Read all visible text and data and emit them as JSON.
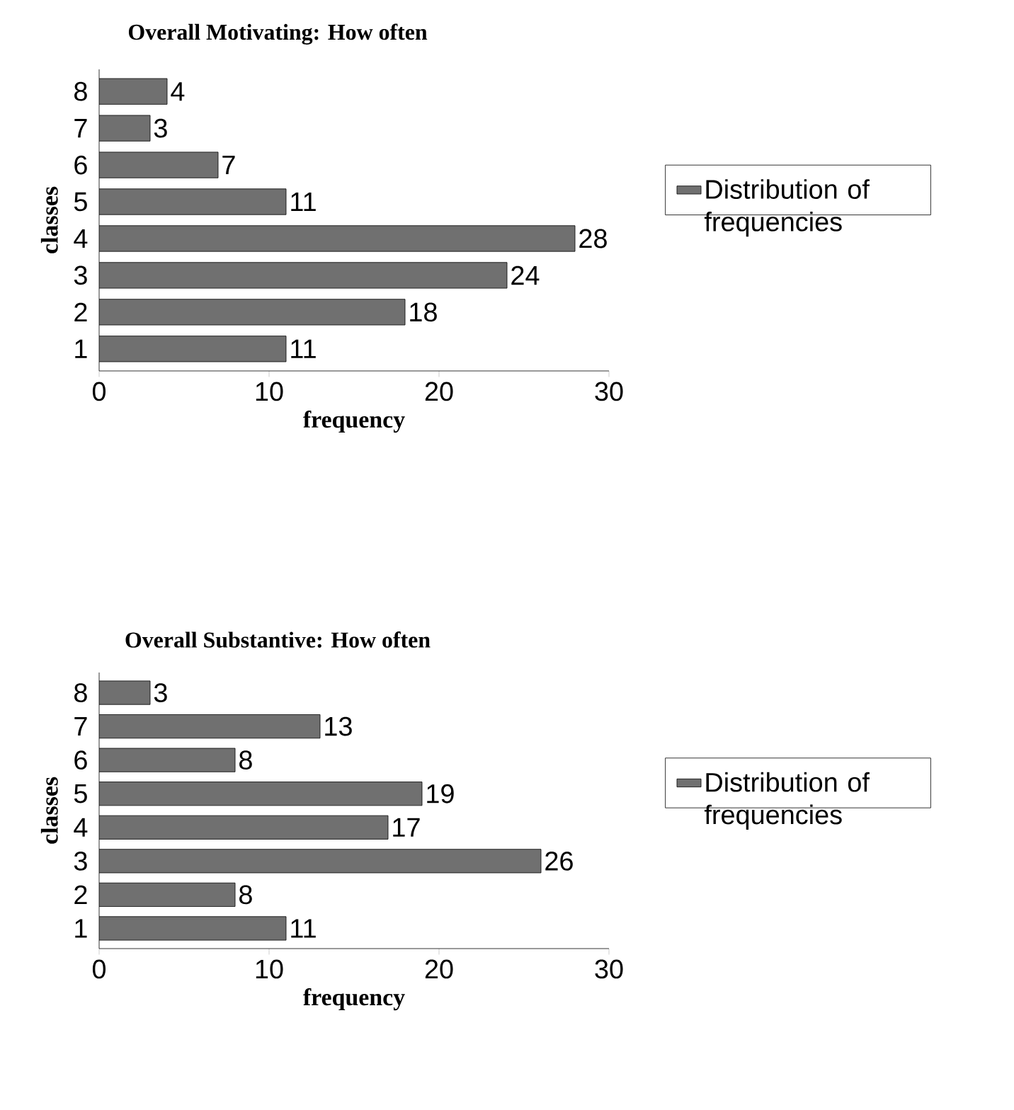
{
  "chart_data": [
    {
      "type": "bar",
      "orientation": "horizontal",
      "title": "Overall Motivating: How often",
      "xlabel": "frequency",
      "ylabel": "classes",
      "categories": [
        "8",
        "7",
        "6",
        "5",
        "4",
        "3",
        "2",
        "1"
      ],
      "series": [
        {
          "name": "Distribution of frequencies",
          "color": "#707070",
          "values": [
            4,
            3,
            7,
            11,
            28,
            24,
            18,
            11
          ]
        }
      ],
      "xlim": [
        0,
        30
      ],
      "xticks": [
        0,
        10,
        20,
        30
      ],
      "data_labels": true,
      "legend": "right"
    },
    {
      "type": "bar",
      "orientation": "horizontal",
      "title": "Overall Substantive: How often",
      "xlabel": "frequency",
      "ylabel": "classes",
      "categories": [
        "8",
        "7",
        "6",
        "5",
        "4",
        "3",
        "2",
        "1"
      ],
      "series": [
        {
          "name": "Distribution of frequencies",
          "color": "#707070",
          "values": [
            3,
            13,
            8,
            19,
            17,
            26,
            8,
            11
          ]
        }
      ],
      "xlim": [
        0,
        30
      ],
      "xticks": [
        0,
        10,
        20,
        30
      ],
      "data_labels": true,
      "legend": "right"
    }
  ]
}
